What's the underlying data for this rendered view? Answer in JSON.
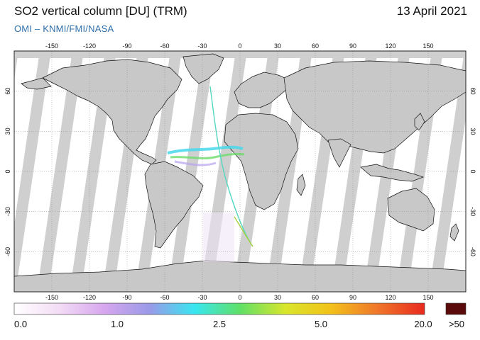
{
  "header": {
    "title": "SO2 vertical column [DU] (TRM)",
    "date": "13 April 2021",
    "credit": "OMI  –  KNMI/FMI/NASA"
  },
  "map": {
    "longitude_ticks": [
      "-150",
      "-120",
      "-90",
      "-60",
      "-30",
      "0",
      "30",
      "60",
      "90",
      "120",
      "150"
    ],
    "latitude_ticks": [
      "60",
      "30",
      "0",
      "-30",
      "-60"
    ],
    "colors": {
      "ocean": "#ffffff",
      "land": "#c8c8c8",
      "no_data_band": "#cfcfcf",
      "no_data_band_over_land": "#9a9a9a",
      "coast": "#111111",
      "grid": "#888888"
    }
  },
  "colorbar": {
    "labels": [
      "0.0",
      "1.0",
      "2.5",
      "5.0",
      "20.0",
      ">50"
    ],
    "overflow_color": "#5a0a0a",
    "gradient": [
      "#ffffff",
      "#f3dcf5",
      "#d6a6ee",
      "#9a9ae8",
      "#38e6f0",
      "#5fe068",
      "#d8e62c",
      "#f2c21a",
      "#f07a2a",
      "#e82a1e"
    ]
  }
}
